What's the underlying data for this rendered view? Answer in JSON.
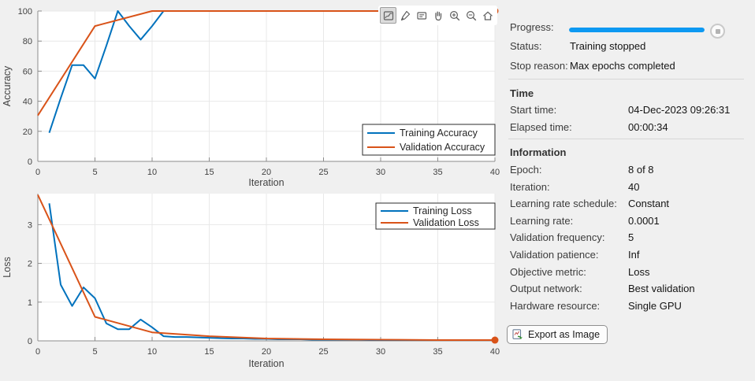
{
  "colors": {
    "training": "#0072BD",
    "validation": "#D95319",
    "progress_bar": "#0D99F2",
    "background": "#F0F0F0",
    "plot_background": "#FFFFFF",
    "grid": "#E8E8E8",
    "axis": "#8C8C8C",
    "tick_text": "#424242"
  },
  "toolbar": {
    "icons": [
      {
        "name": "export-plot-icon",
        "active": true
      },
      {
        "name": "brush-icon",
        "active": false
      },
      {
        "name": "data-tips-icon",
        "active": false
      },
      {
        "name": "pan-icon",
        "active": false
      },
      {
        "name": "zoom-in-icon",
        "active": false
      },
      {
        "name": "zoom-out-icon",
        "active": false
      },
      {
        "name": "restore-view-icon",
        "active": false
      }
    ]
  },
  "chart_data": [
    {
      "type": "line",
      "title": "",
      "xlabel": "Iteration",
      "ylabel": "Accuracy",
      "xlim": [
        0,
        40
      ],
      "ylim": [
        0,
        100
      ],
      "xticks": [
        0,
        5,
        10,
        15,
        20,
        25,
        30,
        35,
        40
      ],
      "yticks": [
        0,
        20,
        40,
        60,
        80,
        100
      ],
      "grid": true,
      "legend_position": "bottom-right",
      "series": [
        {
          "name": "Training Accuracy",
          "color": "#0072BD",
          "x": [
            1,
            2,
            3,
            4,
            5,
            6,
            7,
            8,
            9,
            10,
            11,
            12,
            13,
            14,
            15,
            16,
            17,
            18,
            19,
            20,
            21,
            22,
            23,
            24,
            25,
            26,
            27,
            28,
            29,
            30,
            31,
            32,
            33,
            34,
            35,
            36,
            37,
            38,
            39,
            40
          ],
          "y": [
            19,
            42,
            64,
            64,
            55,
            77,
            100,
            90,
            81,
            90,
            100,
            100,
            100,
            100,
            100,
            100,
            100,
            100,
            100,
            100,
            100,
            100,
            100,
            100,
            100,
            100,
            100,
            100,
            100,
            100,
            100,
            100,
            100,
            100,
            100,
            100,
            100,
            100,
            100,
            100
          ],
          "end_marker": false
        },
        {
          "name": "Validation Accuracy",
          "color": "#D95319",
          "x": [
            0,
            5,
            10,
            15,
            20,
            25,
            30,
            35,
            40
          ],
          "y": [
            30.5,
            90,
            100,
            100,
            100,
            100,
            100,
            100,
            100
          ],
          "end_marker": true
        }
      ]
    },
    {
      "type": "line",
      "title": "",
      "xlabel": "Iteration",
      "ylabel": "Loss",
      "xlim": [
        0,
        40
      ],
      "ylim": [
        0,
        3.8
      ],
      "xticks": [
        0,
        5,
        10,
        15,
        20,
        25,
        30,
        35,
        40
      ],
      "yticks": [
        0,
        1,
        2,
        3
      ],
      "grid": true,
      "legend_position": "top-right",
      "series": [
        {
          "name": "Training Loss",
          "color": "#0072BD",
          "x": [
            1,
            2,
            3,
            4,
            5,
            6,
            7,
            8,
            9,
            10,
            11,
            12,
            13,
            14,
            15,
            16,
            17,
            18,
            19,
            20,
            21,
            22,
            23,
            24,
            25,
            26,
            27,
            28,
            29,
            30,
            31,
            32,
            33,
            34,
            35,
            36,
            37,
            38,
            39,
            40
          ],
          "y": [
            3.55,
            1.45,
            0.9,
            1.38,
            1.1,
            0.45,
            0.3,
            0.3,
            0.55,
            0.35,
            0.12,
            0.1,
            0.1,
            0.09,
            0.08,
            0.07,
            0.06,
            0.06,
            0.05,
            0.05,
            0.04,
            0.04,
            0.04,
            0.03,
            0.03,
            0.03,
            0.03,
            0.03,
            0.02,
            0.02,
            0.02,
            0.02,
            0.02,
            0.02,
            0.02,
            0.02,
            0.02,
            0.02,
            0.02,
            0.02
          ],
          "end_marker": false
        },
        {
          "name": "Validation Loss",
          "color": "#D95319",
          "x": [
            0,
            5,
            10,
            15,
            20,
            25,
            30,
            35,
            40
          ],
          "y": [
            3.77,
            0.62,
            0.22,
            0.12,
            0.06,
            0.04,
            0.03,
            0.02,
            0.02
          ],
          "end_marker": true
        }
      ]
    }
  ],
  "panel": {
    "progress_label": "Progress:",
    "progress_percent": 100,
    "status_label": "Status:",
    "status_value": "Training stopped",
    "stop_reason_label": "Stop reason:",
    "stop_reason_value": "Max epochs completed",
    "sections": [
      {
        "header": "Time",
        "rows": [
          {
            "label": "Start time:",
            "value": "04-Dec-2023 09:26:31"
          },
          {
            "label": "Elapsed time:",
            "value": "00:00:34"
          }
        ]
      },
      {
        "header": "Information",
        "rows": [
          {
            "label": "Epoch:",
            "value": "8 of 8"
          },
          {
            "label": "Iteration:",
            "value": "40"
          },
          {
            "label": "Learning rate schedule:",
            "value": "Constant"
          },
          {
            "label": "Learning rate:",
            "value": "0.0001"
          },
          {
            "label": "Validation frequency:",
            "value": "5"
          },
          {
            "label": "Validation patience:",
            "value": "Inf"
          },
          {
            "label": "Objective metric:",
            "value": "Loss"
          },
          {
            "label": "Output network:",
            "value": "Best validation"
          },
          {
            "label": "Hardware resource:",
            "value": "Single GPU"
          }
        ]
      }
    ],
    "export_button_label": "Export as Image"
  }
}
